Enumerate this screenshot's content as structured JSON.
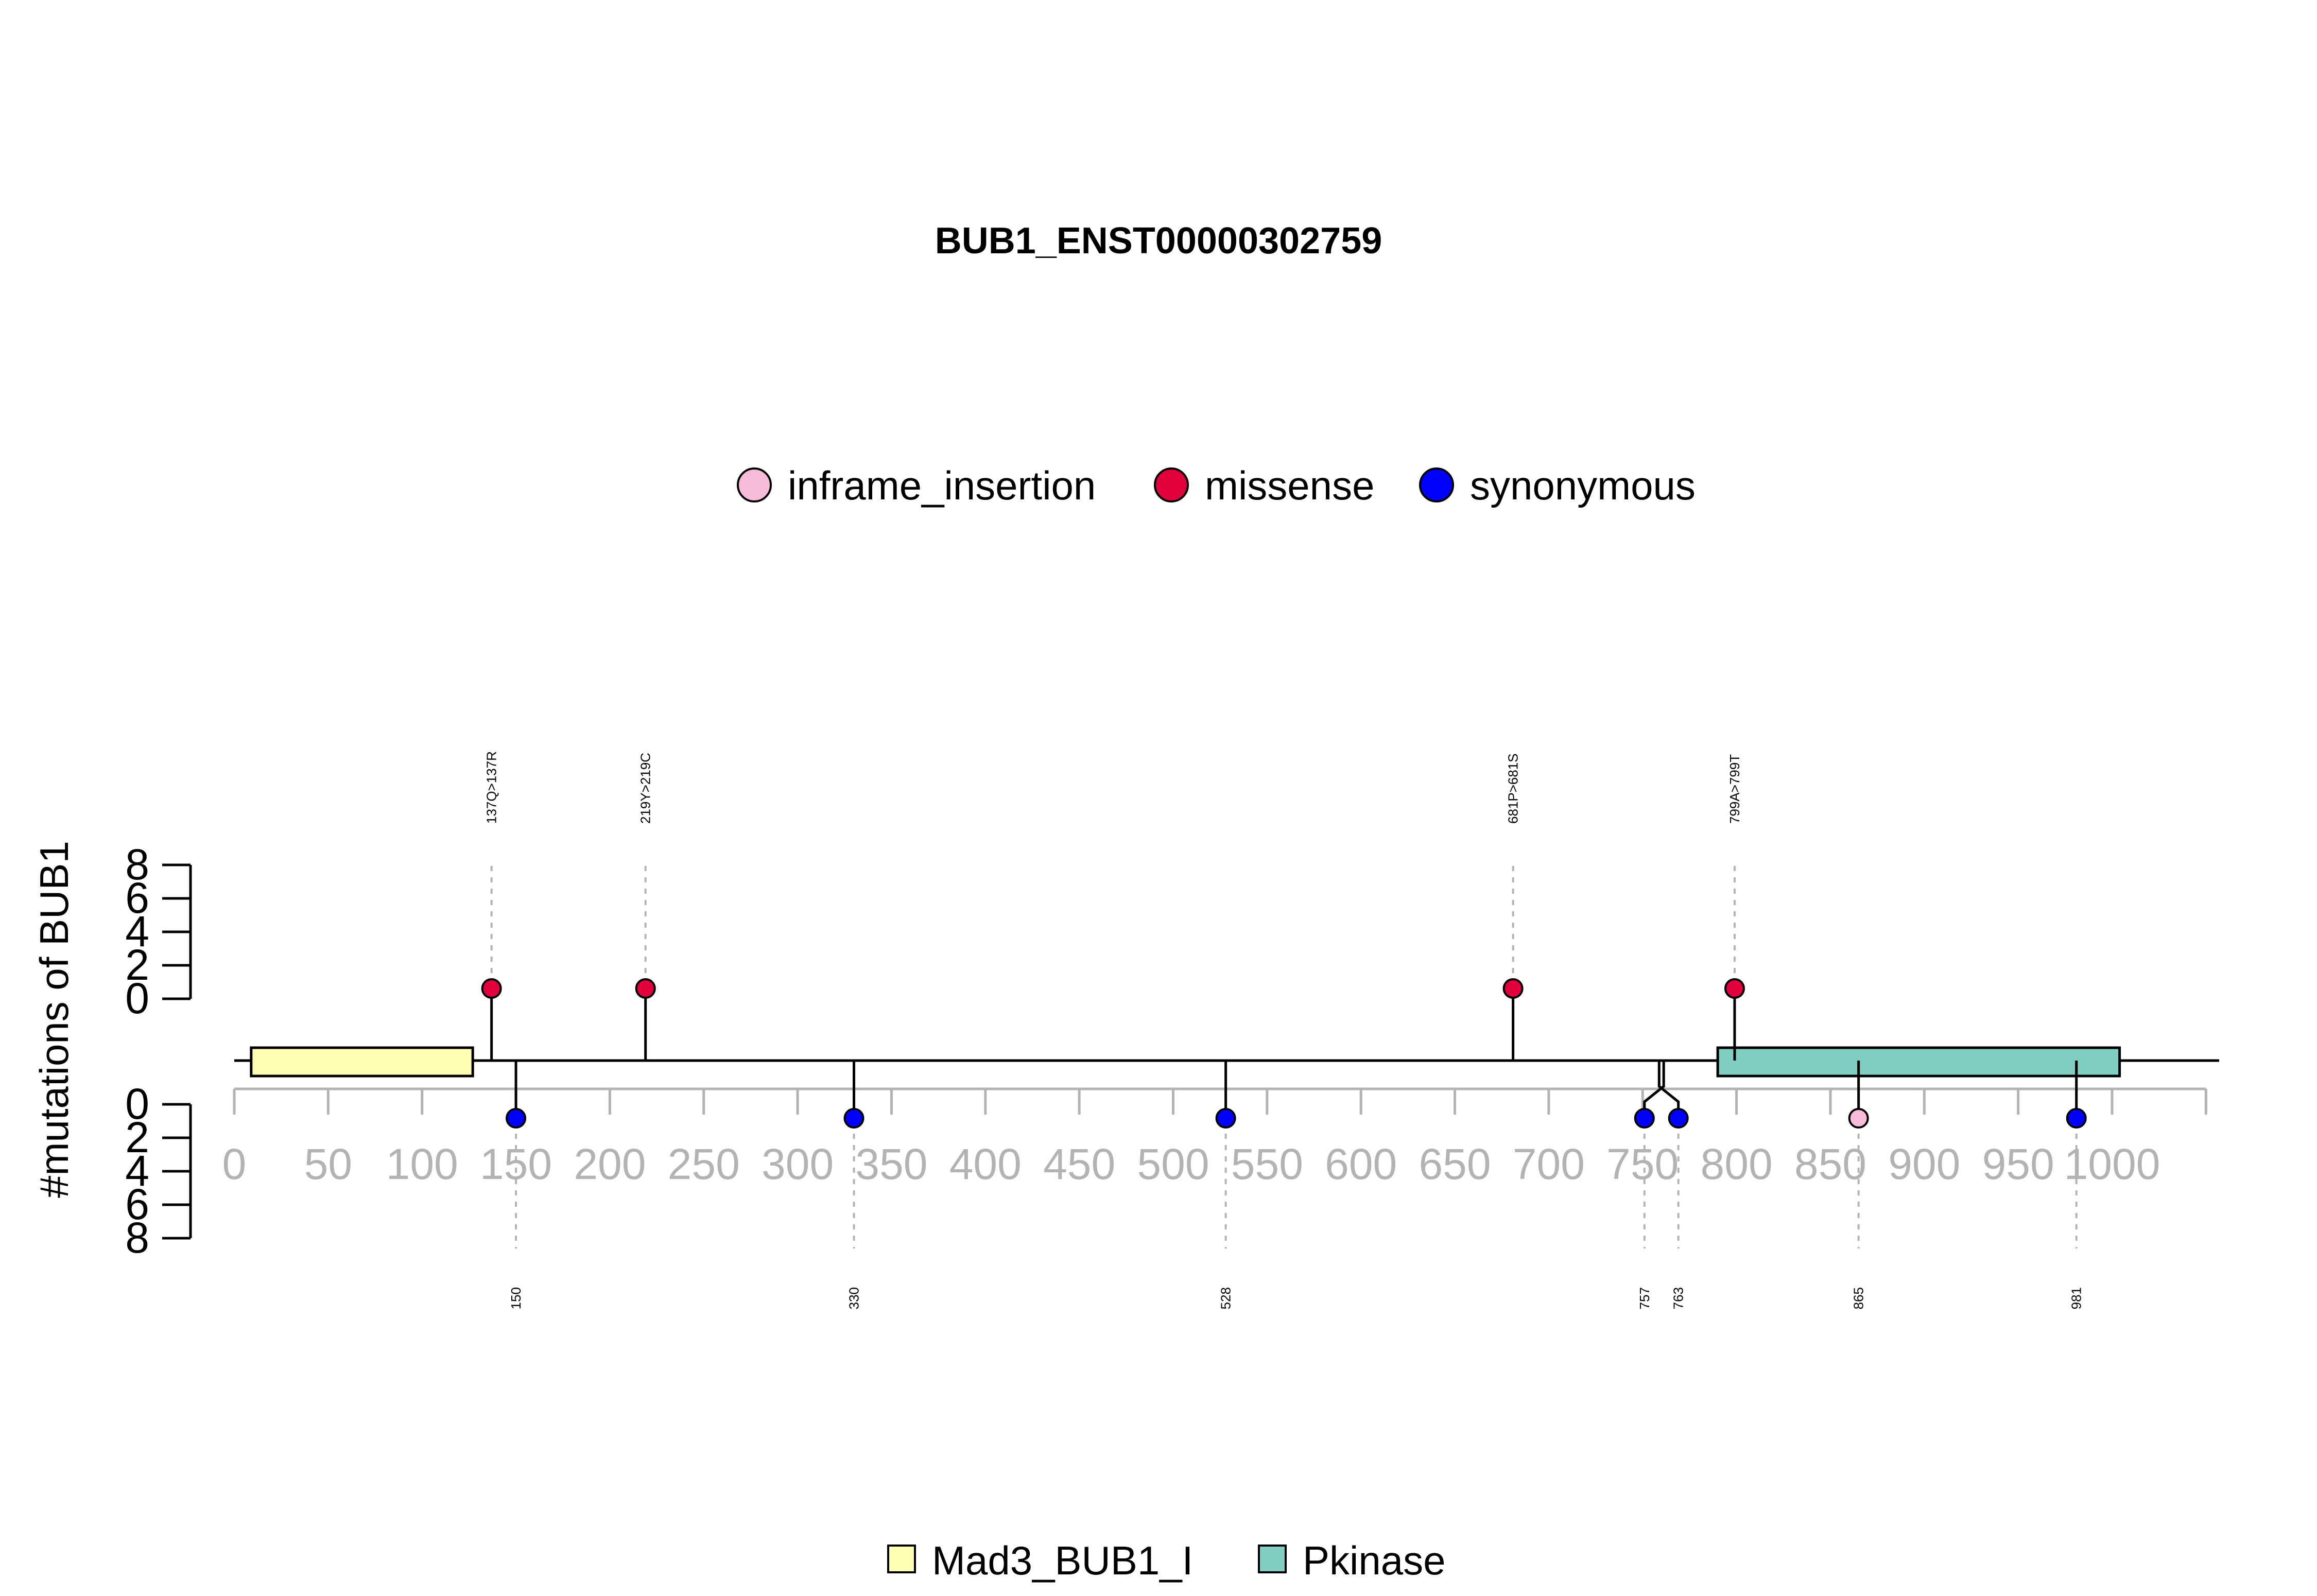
{
  "chart_data": {
    "type": "lollipop",
    "title": "BUB1_ENST00000302759",
    "ylabel": "#mutations of BUB1",
    "protein_length": 1085,
    "xlim": [
      0,
      1050
    ],
    "x_ticks": [
      "0",
      "50",
      "100",
      "150",
      "200",
      "250",
      "300",
      "350",
      "400",
      "450",
      "500",
      "550",
      "600",
      "650",
      "700",
      "750",
      "800",
      "850",
      "900",
      "950",
      "1000"
    ],
    "y_ticks_top": [
      "8",
      "6",
      "4",
      "2",
      "0"
    ],
    "y_ticks_bottom": [
      "0",
      "2",
      "4",
      "6",
      "8"
    ],
    "mutation_types": [
      {
        "name": "inframe_insertion",
        "color": "#F8BBD9"
      },
      {
        "name": "missense",
        "color": "#E0003C"
      },
      {
        "name": "synonymous",
        "color": "#0000FF"
      }
    ],
    "domains": [
      {
        "name": "Mad3_BUB1_I",
        "start": 9,
        "end": 127,
        "color": "#FFFFB3"
      },
      {
        "name": "Pkinase",
        "start": 790,
        "end": 1004,
        "color": "#80CDC1"
      }
    ],
    "mutations_top": [
      {
        "position": 137,
        "count": 1,
        "type": "missense",
        "label": "137Q>137R"
      },
      {
        "position": 219,
        "count": 1,
        "type": "missense",
        "label": "219Y>219C"
      },
      {
        "position": 681,
        "count": 1,
        "type": "missense",
        "label": "681P>681S"
      },
      {
        "position": 799,
        "count": 1,
        "type": "missense",
        "label": "799A>799T"
      }
    ],
    "mutations_bottom": [
      {
        "position": 150,
        "count": 1,
        "type": "synonymous",
        "label": "150"
      },
      {
        "position": 330,
        "count": 1,
        "type": "synonymous",
        "label": "330"
      },
      {
        "position": 528,
        "count": 1,
        "type": "synonymous",
        "label": "528"
      },
      {
        "position": 757,
        "count": 1,
        "type": "synonymous",
        "label": "757"
      },
      {
        "position": 763,
        "count": 1,
        "type": "synonymous",
        "label": "763"
      },
      {
        "position": 865,
        "count": 1,
        "type": "inframe_insertion",
        "label": "865"
      },
      {
        "position": 981,
        "count": 1,
        "type": "synonymous",
        "label": "981"
      }
    ],
    "grid": false
  }
}
